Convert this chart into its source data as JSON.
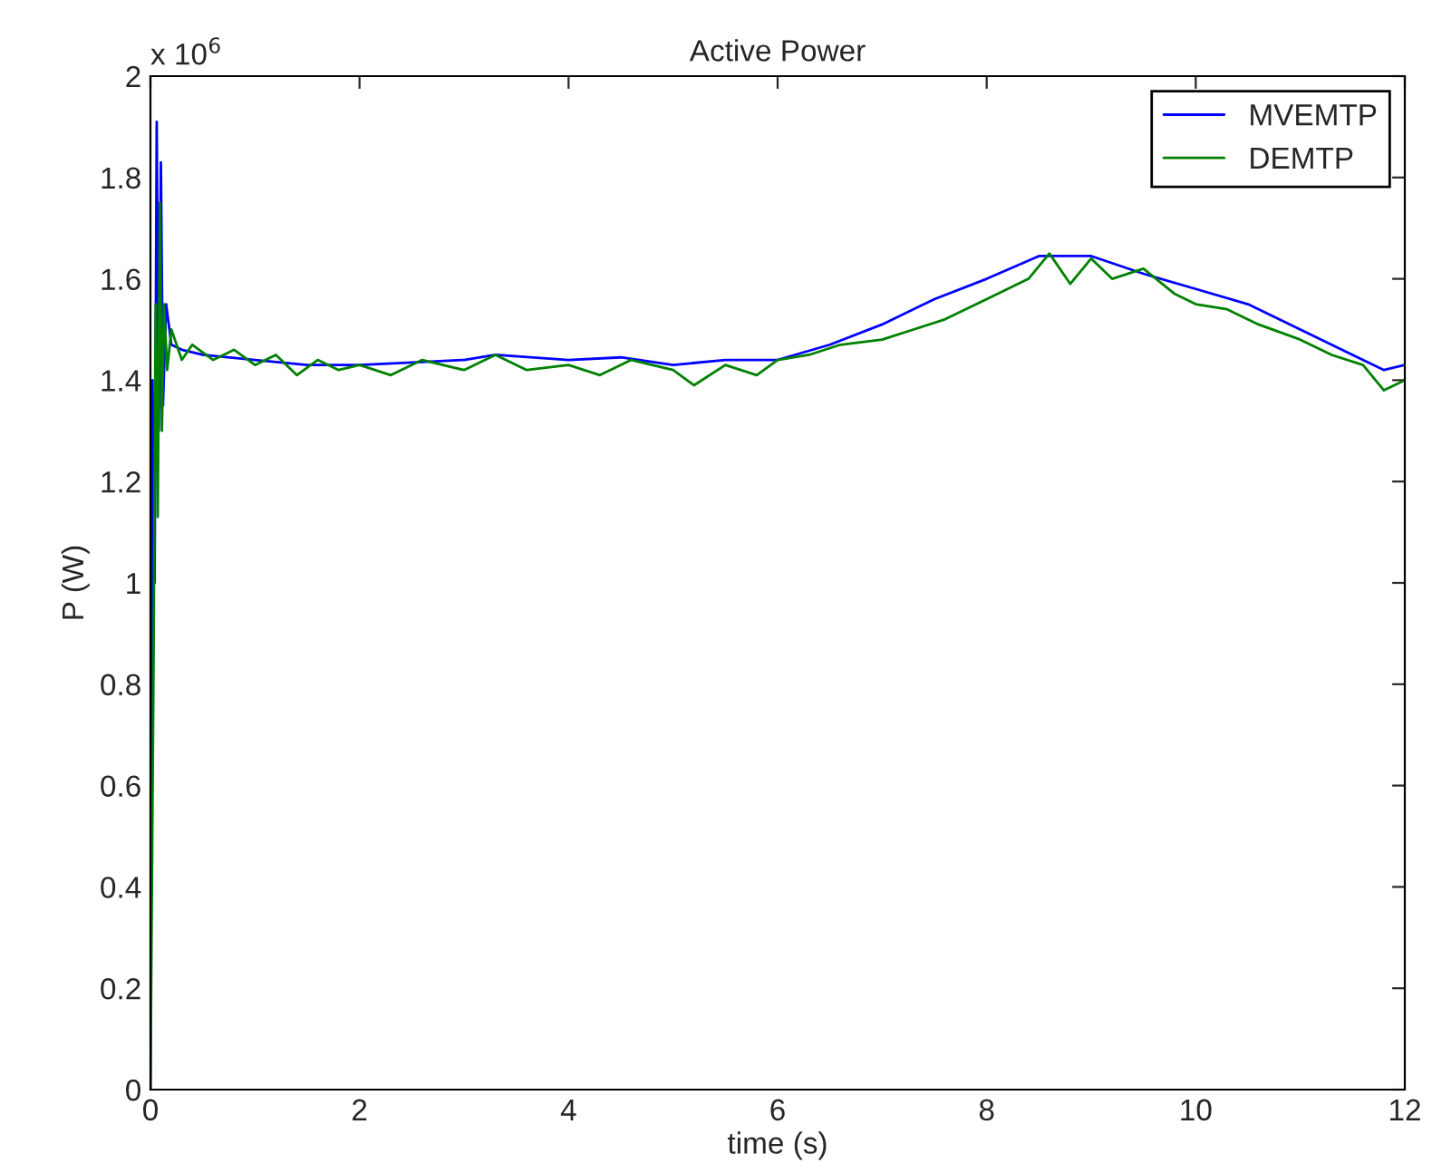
{
  "chart_data": {
    "type": "line",
    "title": "Active Power",
    "xlabel": "time (s)",
    "ylabel": "P (W)",
    "annotations": [
      "x 10$^{6}$"
    ],
    "xlim": [
      0,
      12
    ],
    "xticks": [
      0,
      2,
      4,
      6,
      8,
      10,
      12
    ],
    "ylim": [
      0,
      2
    ],
    "yticks": [
      0,
      0.2,
      0.4,
      0.6,
      0.8,
      1,
      1.2,
      1.4,
      1.6,
      1.8,
      2
    ],
    "grid": false,
    "legend": "top right",
    "line_style": "solid",
    "marker": "none",
    "series": [
      {
        "name": "MVEMTP",
        "color": "#0000ff",
        "x": [
          0,
          0.02,
          0.04,
          0.06,
          0.08,
          0.1,
          0.12,
          0.15,
          0.2,
          0.3,
          0.5,
          1,
          1.5,
          2,
          2.5,
          3,
          3.3,
          4,
          4.5,
          5,
          5.5,
          6,
          6.5,
          7,
          7.5,
          8,
          8.5,
          9,
          9.5,
          10,
          10.5,
          11,
          11.5,
          11.8,
          12
        ],
        "values": [
          0,
          1.4,
          1.0,
          1.91,
          1.3,
          1.83,
          1.35,
          1.55,
          1.47,
          1.46,
          1.45,
          1.44,
          1.43,
          1.43,
          1.435,
          1.44,
          1.45,
          1.44,
          1.445,
          1.43,
          1.44,
          1.44,
          1.47,
          1.51,
          1.56,
          1.6,
          1.645,
          1.645,
          1.61,
          1.58,
          1.55,
          1.5,
          1.45,
          1.42,
          1.43
        ]
      },
      {
        "name": "DEMTP",
        "color": "#008000",
        "x": [
          0,
          0.03,
          0.05,
          0.07,
          0.09,
          0.11,
          0.13,
          0.16,
          0.2,
          0.3,
          0.4,
          0.6,
          0.8,
          1,
          1.2,
          1.4,
          1.6,
          1.8,
          2,
          2.3,
          2.6,
          3,
          3.3,
          3.6,
          4,
          4.3,
          4.6,
          5,
          5.2,
          5.5,
          5.8,
          6,
          6.3,
          6.6,
          7,
          7.3,
          7.6,
          8,
          8.2,
          8.4,
          8.6,
          8.8,
          9,
          9.2,
          9.5,
          9.8,
          10,
          10.3,
          10.6,
          11,
          11.3,
          11.6,
          11.8,
          12
        ],
        "values": [
          0,
          0.85,
          1.55,
          1.13,
          1.75,
          1.3,
          1.55,
          1.42,
          1.5,
          1.44,
          1.47,
          1.44,
          1.46,
          1.43,
          1.45,
          1.41,
          1.44,
          1.42,
          1.43,
          1.41,
          1.44,
          1.42,
          1.45,
          1.42,
          1.43,
          1.41,
          1.44,
          1.42,
          1.39,
          1.43,
          1.41,
          1.44,
          1.45,
          1.47,
          1.48,
          1.5,
          1.52,
          1.56,
          1.58,
          1.6,
          1.65,
          1.59,
          1.64,
          1.6,
          1.62,
          1.57,
          1.55,
          1.54,
          1.51,
          1.48,
          1.45,
          1.43,
          1.38,
          1.4
        ]
      }
    ]
  }
}
